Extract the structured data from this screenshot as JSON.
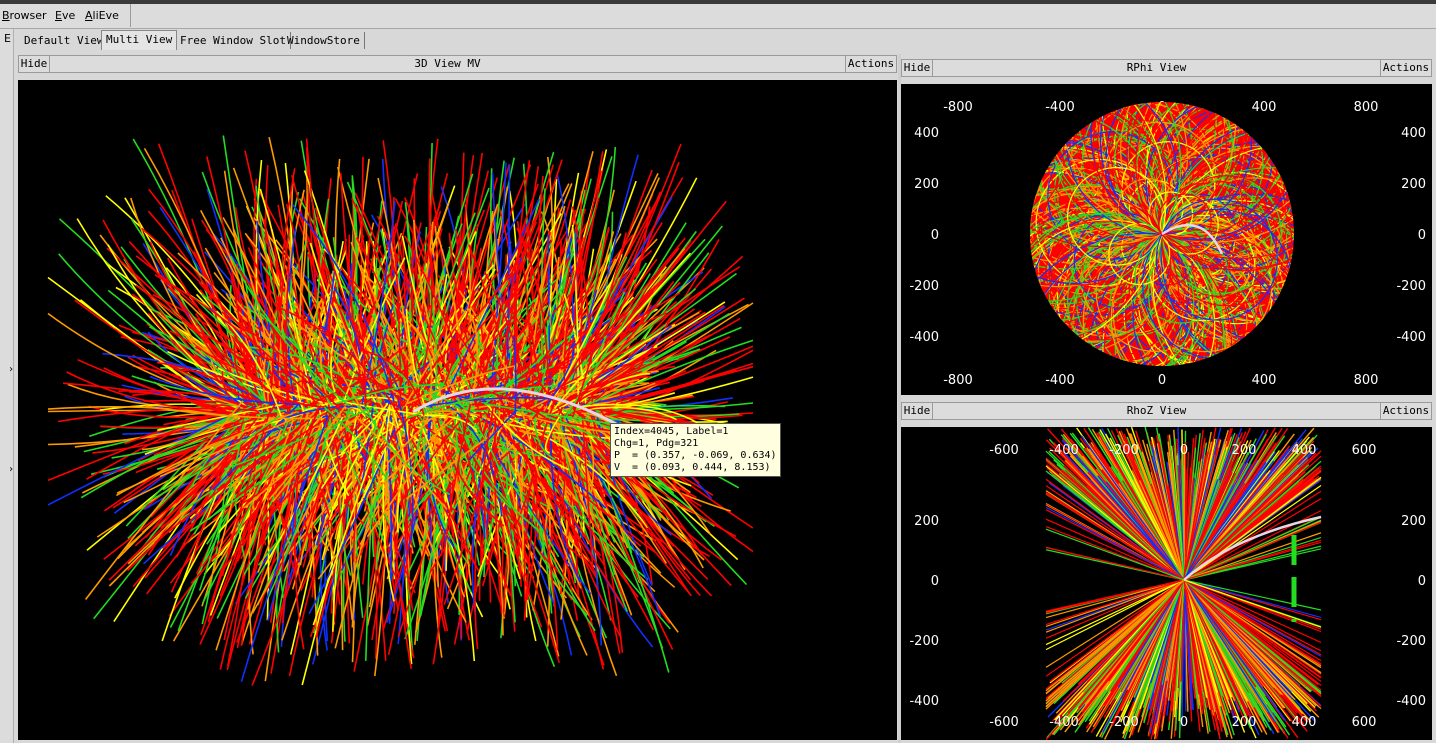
{
  "menu": {
    "items": [
      "Browser",
      "Eve",
      "AliEve"
    ]
  },
  "left_strip": {
    "label": "E"
  },
  "tabs": [
    "Default View",
    "Multi View",
    "Free Window Slot",
    "WindowStore"
  ],
  "active_tab": "Multi View",
  "panes": {
    "view3d": {
      "hide_label": "Hide",
      "title": "3D View MV",
      "actions_label": "Actions"
    },
    "rphi": {
      "hide_label": "Hide",
      "title": "RPhi View",
      "actions_label": "Actions"
    },
    "rhoz": {
      "hide_label": "Hide",
      "title": "RhoZ View",
      "actions_label": "Actions"
    }
  },
  "tooltip": {
    "lines": [
      "Index=4045, Label=1",
      "Chg=1, Pdg=321",
      "P  = (0.357, -0.069, 0.634)",
      "V  = (0.093, 0.444, 8.153)"
    ]
  },
  "rphi_axes": {
    "x_ticks": [
      "-800",
      "-400",
      "0",
      "400",
      "800"
    ],
    "y_ticks": [
      "400",
      "200",
      "0",
      "-200",
      "-400"
    ]
  },
  "rhoz_axes": {
    "x_ticks_outer": [
      "-600",
      "600"
    ],
    "x_ticks_inner": [
      "-400",
      "-200",
      "0",
      "200",
      "400"
    ],
    "y_ticks": [
      "200",
      "0",
      "-200",
      "-400"
    ]
  },
  "colors": {
    "track_red": "#ff0000",
    "track_orange": "#ff9900",
    "track_yellow": "#ffff00",
    "track_green": "#22dd22",
    "track_blue": "#1030ff",
    "selected_track": "#e6d6e6",
    "background": "#000000"
  }
}
